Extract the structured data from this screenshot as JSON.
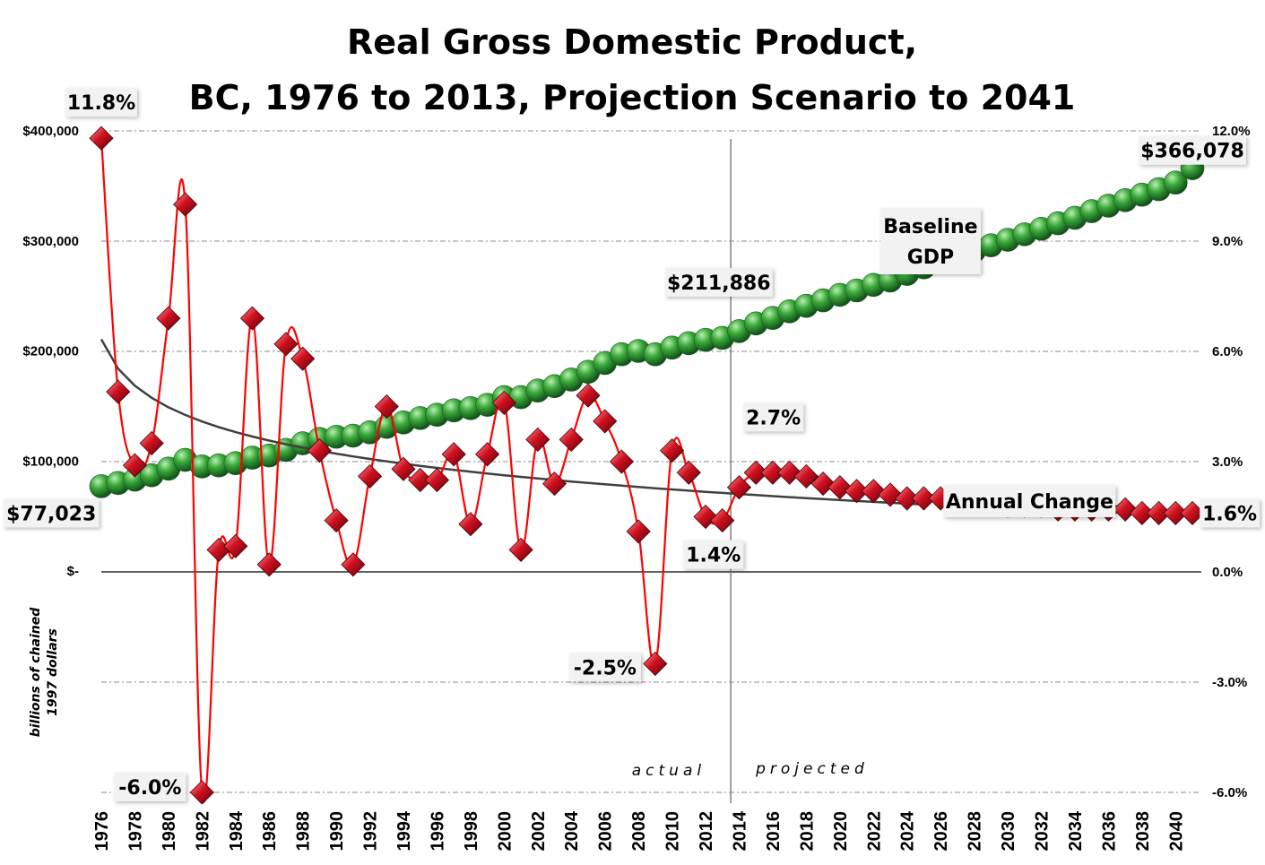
{
  "chart_data": {
    "type": "line",
    "title_lines": [
      "Real Gross Domestic Product,",
      "BC, 1976 to 2013, Projection Scenario to 2041"
    ],
    "y_left_label_lines": [
      "billions of chained",
      "1997 dollars"
    ],
    "y_left_ticks": [
      "$400,000",
      "$300,000",
      "$200,000",
      "$100,000",
      "$-"
    ],
    "y_right_ticks": [
      "12.0%",
      "9.0%",
      "6.0%",
      "3.0%",
      "0.0%",
      "-3.0%",
      "-6.0%"
    ],
    "y_left_range": [
      0,
      400000
    ],
    "y_right_range": [
      -6,
      12
    ],
    "x_tick_labels": [
      "1976",
      "1978",
      "1980",
      "1982",
      "1984",
      "1986",
      "1988",
      "1990",
      "1992",
      "1994",
      "1996",
      "1998",
      "2000",
      "2002",
      "2004",
      "2006",
      "2008",
      "2010",
      "2012",
      "2014",
      "2016",
      "2018",
      "2020",
      "2022",
      "2024",
      "2026",
      "2028",
      "2030",
      "2032",
      "2034",
      "2036",
      "2038",
      "2040"
    ],
    "x": [
      1976,
      1977,
      1978,
      1979,
      1980,
      1981,
      1982,
      1983,
      1984,
      1985,
      1986,
      1987,
      1988,
      1989,
      1990,
      1991,
      1992,
      1993,
      1994,
      1995,
      1996,
      1997,
      1998,
      1999,
      2000,
      2001,
      2002,
      2003,
      2004,
      2005,
      2006,
      2007,
      2008,
      2009,
      2010,
      2011,
      2012,
      2013,
      2014,
      2015,
      2016,
      2017,
      2018,
      2019,
      2020,
      2021,
      2022,
      2023,
      2024,
      2025,
      2026,
      2027,
      2028,
      2029,
      2030,
      2031,
      2032,
      2033,
      2034,
      2035,
      2036,
      2037,
      2038,
      2039,
      2040,
      2041
    ],
    "series": [
      {
        "name": "Baseline GDP",
        "axis": "left",
        "color": "#3a9a3a",
        "marker": "sphere",
        "values": [
          77023,
          80000,
          83000,
          87000,
          93000,
          101000,
          95000,
          96000,
          98000,
          103000,
          105000,
          110000,
          116000,
          120000,
          122000,
          123000,
          126000,
          131000,
          135000,
          139000,
          142000,
          146000,
          148000,
          151000,
          158000,
          158000,
          164000,
          168000,
          174000,
          181000,
          189000,
          197000,
          200000,
          197000,
          203000,
          207000,
          210000,
          211886,
          218000,
          225000,
          230000,
          236000,
          241000,
          246000,
          251000,
          255000,
          260000,
          264000,
          270000,
          276000,
          281000,
          286000,
          291000,
          296000,
          301000,
          306000,
          311000,
          316000,
          321000,
          327000,
          332000,
          337000,
          342000,
          347000,
          353000,
          366078
        ]
      },
      {
        "name": "Annual Change",
        "axis": "right",
        "color": "#ff0000",
        "marker": "diamond",
        "values": [
          11.8,
          4.9,
          2.9,
          3.5,
          6.9,
          10.0,
          -6.0,
          0.6,
          0.7,
          6.9,
          0.2,
          6.2,
          5.8,
          3.3,
          1.4,
          0.2,
          2.6,
          4.5,
          2.8,
          2.5,
          2.5,
          3.2,
          1.3,
          3.2,
          4.6,
          0.6,
          3.6,
          2.4,
          3.6,
          4.8,
          4.1,
          3.0,
          1.1,
          -2.5,
          3.3,
          2.7,
          1.5,
          1.4,
          2.3,
          2.7,
          2.7,
          2.7,
          2.6,
          2.4,
          2.3,
          2.2,
          2.2,
          2.1,
          2.0,
          2.0,
          2.0,
          1.9,
          1.9,
          1.9,
          1.8,
          1.8,
          1.8,
          1.7,
          1.7,
          1.7,
          1.7,
          1.7,
          1.6,
          1.6,
          1.6,
          1.6
        ]
      }
    ],
    "trend_line": {
      "axis": "right",
      "color": "#404040",
      "type": "logarithmic"
    },
    "divider_year": 2013.5,
    "annotations": {
      "actual": "actual",
      "projected": "projected",
      "baseline_label_lines": [
        "Baseline",
        "GDP"
      ],
      "annual_change_label": "Annual Change"
    },
    "data_labels": [
      {
        "text": "11.8%",
        "year": 1976,
        "series": "Annual Change"
      },
      {
        "text": "-6.0%",
        "year": 1982,
        "series": "Annual Change"
      },
      {
        "text": "-2.5%",
        "year": 2009,
        "series": "Annual Change"
      },
      {
        "text": "2.7%",
        "year": 2017,
        "series": "Annual Change"
      },
      {
        "text": "1.4%",
        "year": 2013,
        "series": "Annual Change"
      },
      {
        "text": "1.6%",
        "year": 2041,
        "series": "Annual Change"
      },
      {
        "text": "$77,023",
        "year": 1976,
        "series": "Baseline GDP"
      },
      {
        "text": "$211,886",
        "year": 2013,
        "series": "Baseline GDP"
      },
      {
        "text": "$366,078",
        "year": 2041,
        "series": "Baseline GDP"
      }
    ],
    "grid": {
      "horizontal": true,
      "style": "dash-dot"
    }
  }
}
